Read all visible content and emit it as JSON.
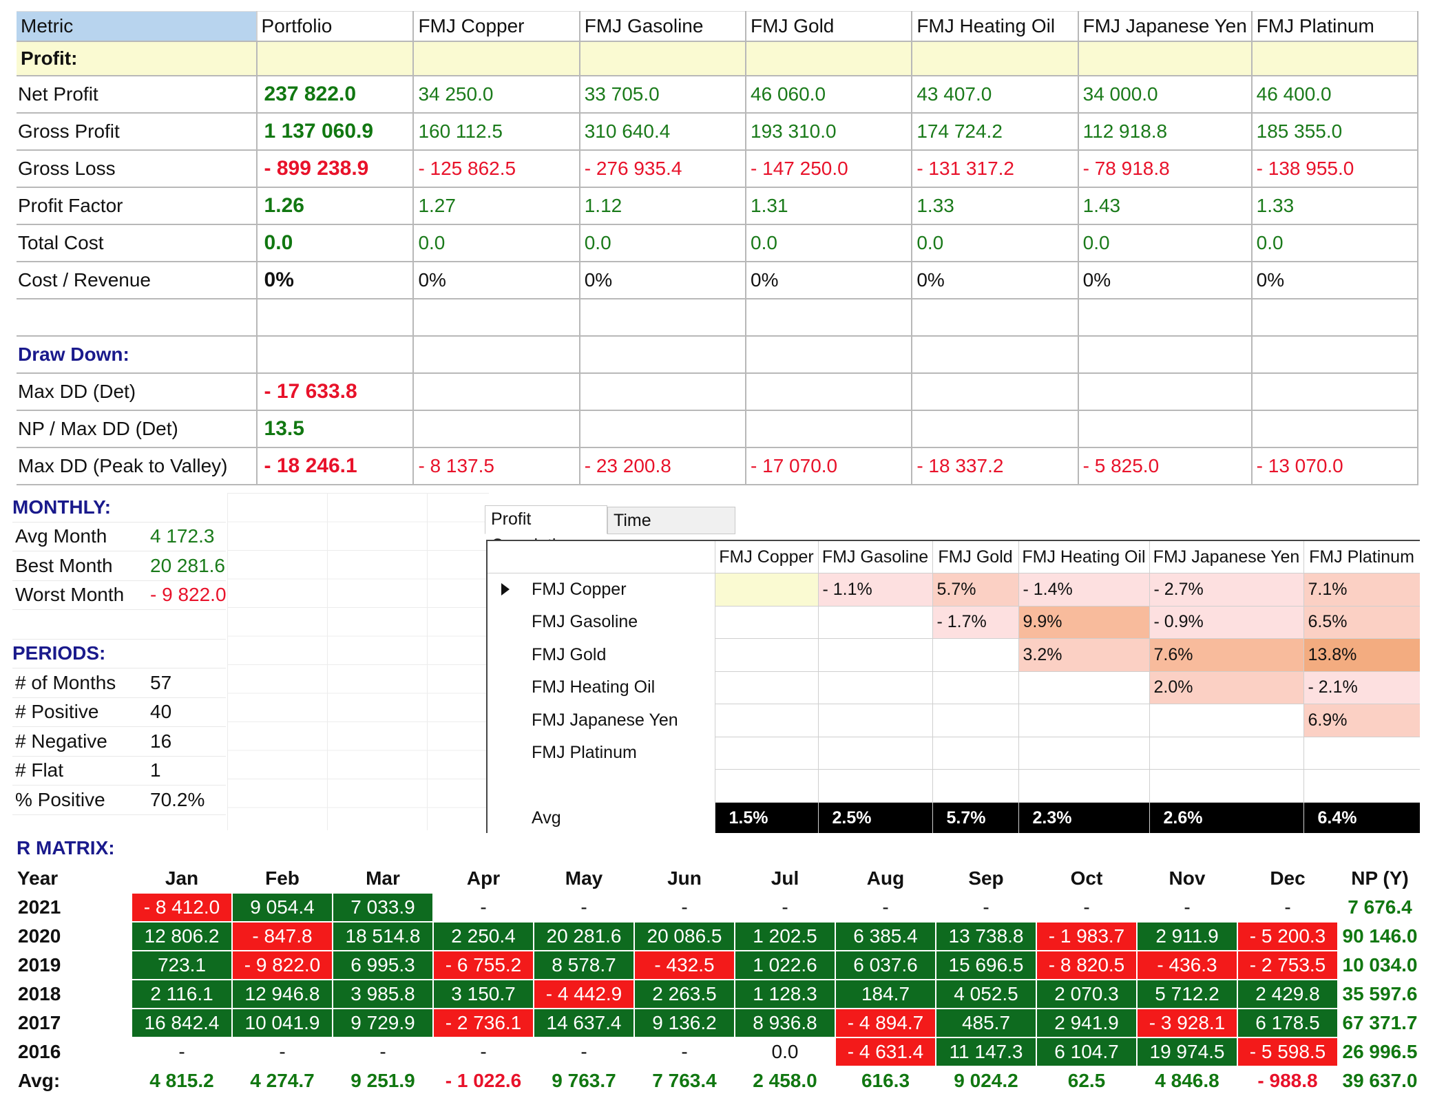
{
  "metrics": {
    "header": [
      "Metric",
      "Portfolio",
      "FMJ Copper",
      "FMJ Gasoline",
      "FMJ Gold",
      "FMJ Heating Oil",
      "FMJ Japanese Yen",
      "FMJ Platinum"
    ],
    "profit_section": "Profit:",
    "drawdown_section": "Draw Down:",
    "rows": [
      {
        "label": "Net Profit",
        "values": [
          "237 822.0",
          "34 250.0",
          "33 705.0",
          "46 060.0",
          "43 407.0",
          "34 000.0",
          "46 400.0"
        ],
        "tone": "pos"
      },
      {
        "label": "Gross Profit",
        "values": [
          "1 137 060.9",
          "160 112.5",
          "310 640.4",
          "193 310.0",
          "174 724.2",
          "112 918.8",
          "185 355.0"
        ],
        "tone": "pos"
      },
      {
        "label": "Gross Loss",
        "values": [
          "- 899 238.9",
          "- 125 862.5",
          "- 276 935.4",
          "- 147 250.0",
          "- 131 317.2",
          "- 78 918.8",
          "- 138 955.0"
        ],
        "tone": "neg"
      },
      {
        "label": "Profit Factor",
        "values": [
          "1.26",
          "1.27",
          "1.12",
          "1.31",
          "1.33",
          "1.43",
          "1.33"
        ],
        "tone": "pos"
      },
      {
        "label": "Total Cost",
        "values": [
          "0.0",
          "0.0",
          "0.0",
          "0.0",
          "0.0",
          "0.0",
          "0.0"
        ],
        "tone": "pos"
      },
      {
        "label": "Cost / Revenue",
        "values": [
          "0%",
          "0%",
          "0%",
          "0%",
          "0%",
          "0%",
          "0%"
        ],
        "tone": "plain"
      }
    ],
    "dd_rows": [
      {
        "label": "Max DD (Det)",
        "values": [
          "- 17 633.8",
          "",
          "",
          "",
          "",
          "",
          ""
        ],
        "tone": "neg"
      },
      {
        "label": "NP / Max DD (Det)",
        "values": [
          "13.5",
          "",
          "",
          "",
          "",
          "",
          ""
        ],
        "tone": "pos"
      },
      {
        "label": "Max DD (Peak to Valley)",
        "values": [
          "- 18 246.1",
          "- 8 137.5",
          "- 23 200.8",
          "- 17 070.0",
          "- 18 337.2",
          "- 5 825.0",
          "- 13 070.0"
        ],
        "tone": "neg"
      }
    ]
  },
  "monthly": {
    "title": "MONTHLY:",
    "avg_label": "Avg Month",
    "avg_value": "4 172.3",
    "best_label": "Best Month",
    "best_value": "20 281.6",
    "worst_label": "Worst Month",
    "worst_value": "- 9 822.0"
  },
  "periods": {
    "title": "PERIODS:",
    "months_label": "# of Months",
    "months_value": "57",
    "positive_label": "# Positive",
    "positive_value": "40",
    "negative_label": "# Negative",
    "negative_value": "16",
    "flat_label": "# Flat",
    "flat_value": "1",
    "pct_label": "% Positive",
    "pct_value": "70.2%"
  },
  "correlation": {
    "tabs": [
      "Profit Correlation",
      "Time Correlation"
    ],
    "columns": [
      "FMJ Copper",
      "FMJ Gasoline",
      "FMJ Gold",
      "FMJ Heating Oil",
      "FMJ Japanese Yen",
      "FMJ Platinum"
    ],
    "rows": [
      {
        "label": "FMJ Copper",
        "cells": [
          "",
          "- 1.1%",
          "5.7%",
          "- 1.4%",
          "- 2.7%",
          "7.1%"
        ]
      },
      {
        "label": "FMJ Gasoline",
        "cells": [
          "",
          "",
          "- 1.7%",
          "9.9%",
          "- 0.9%",
          "6.5%"
        ]
      },
      {
        "label": "FMJ Gold",
        "cells": [
          "",
          "",
          "",
          "3.2%",
          "7.6%",
          "13.8%"
        ]
      },
      {
        "label": "FMJ Heating Oil",
        "cells": [
          "",
          "",
          "",
          "",
          "2.0%",
          "- 2.1%"
        ]
      },
      {
        "label": "FMJ Japanese Yen",
        "cells": [
          "",
          "",
          "",
          "",
          "",
          "6.9%"
        ]
      },
      {
        "label": "FMJ Platinum",
        "cells": [
          "",
          "",
          "",
          "",
          "",
          ""
        ]
      }
    ],
    "avg_label": "Avg",
    "avg": [
      "1.5%",
      "2.5%",
      "5.7%",
      "2.3%",
      "2.6%",
      "6.4%"
    ]
  },
  "r_matrix": {
    "title": "R MATRIX:",
    "header": [
      "Year",
      "Jan",
      "Feb",
      "Mar",
      "Apr",
      "May",
      "Jun",
      "Jul",
      "Aug",
      "Sep",
      "Oct",
      "Nov",
      "Dec",
      "NP (Y)"
    ],
    "rows": [
      {
        "year": "2021",
        "cells": [
          "- 8 412.0",
          "9 054.4",
          "7 033.9",
          "-",
          "-",
          "-",
          "-",
          "-",
          "-",
          "-",
          "-",
          "-"
        ],
        "np": "7 676.4"
      },
      {
        "year": "2020",
        "cells": [
          "12 806.2",
          "- 847.8",
          "18 514.8",
          "2 250.4",
          "20 281.6",
          "20 086.5",
          "1 202.5",
          "6 385.4",
          "13 738.8",
          "- 1 983.7",
          "2 911.9",
          "- 5 200.3"
        ],
        "np": "90 146.0"
      },
      {
        "year": "2019",
        "cells": [
          "723.1",
          "- 9 822.0",
          "6 995.3",
          "- 6 755.2",
          "8 578.7",
          "- 432.5",
          "1 022.6",
          "6 037.6",
          "15 696.5",
          "- 8 820.5",
          "- 436.3",
          "- 2 753.5"
        ],
        "np": "10 034.0"
      },
      {
        "year": "2018",
        "cells": [
          "2 116.1",
          "12 946.8",
          "3 985.8",
          "3 150.7",
          "- 4 442.9",
          "2 263.5",
          "1 128.3",
          "184.7",
          "4 052.5",
          "2 070.3",
          "5 712.2",
          "2 429.8"
        ],
        "np": "35 597.6"
      },
      {
        "year": "2017",
        "cells": [
          "16 842.4",
          "10 041.9",
          "9 729.9",
          "- 2 736.1",
          "14 637.4",
          "9 136.2",
          "8 936.8",
          "- 4 894.7",
          "485.7",
          "2 941.9",
          "- 3 928.1",
          "6 178.5"
        ],
        "np": "67 371.7"
      },
      {
        "year": "2016",
        "cells": [
          "-",
          "-",
          "-",
          "-",
          "-",
          "-",
          "0.0",
          "- 4 631.4",
          "11 147.3",
          "6 104.7",
          "19 974.5",
          "- 5 598.5"
        ],
        "np": "26 996.5"
      }
    ],
    "avg_label": "Avg:",
    "avg": [
      "4 815.2",
      "4 274.7",
      "9 251.9",
      "- 1 022.6",
      "9 763.7",
      "7 763.4",
      "2 458.0",
      "616.3",
      "9 024.2",
      "62.5",
      "4 846.8",
      "- 988.8"
    ],
    "avg_np": "39 637.0"
  }
}
